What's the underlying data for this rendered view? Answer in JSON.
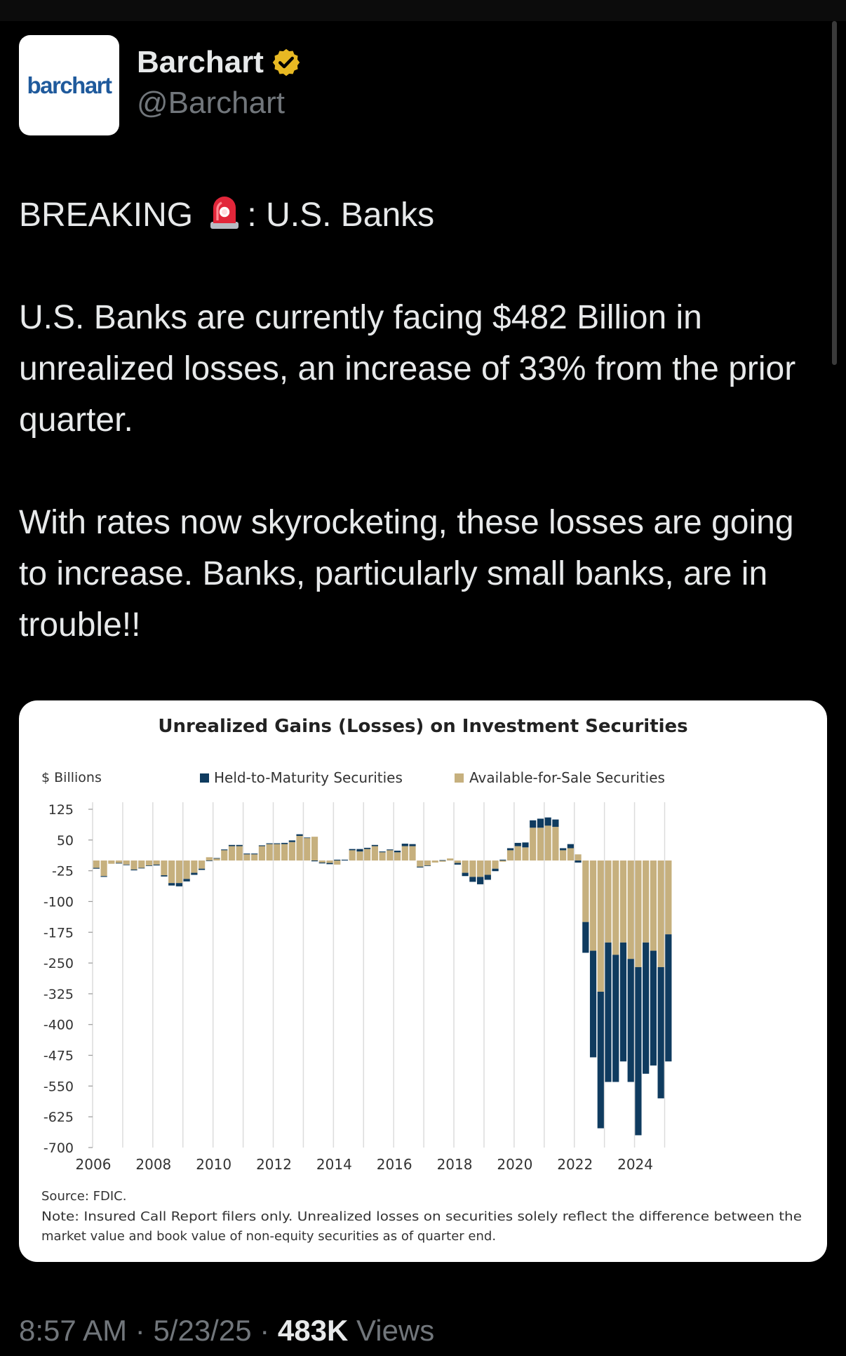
{
  "post": {
    "author": {
      "name": "Barchart",
      "handle": "@Barchart",
      "avatar_text": "barchart",
      "verified_icon": "verified-badge-icon",
      "avatar_color": "#1f5a9c",
      "badge_color": "#e8b923"
    },
    "text": {
      "line1_prefix": "BREAKING",
      "line1_icon": "siren-emoji-icon",
      "line1_suffix": ": U.S. Banks",
      "paragraph2": "U.S. Banks are currently facing $482 Billion in unrealized losses, an increase of 33% from the prior quarter.",
      "paragraph3": "With rates now skyrocketing, these losses are going to increase.  Banks, particularly small banks, are in trouble!!"
    },
    "footer": {
      "time": "8:57 AM",
      "sep1": " · ",
      "date": "5/23/25",
      "sep2": " · ",
      "views_count": "483K",
      "views_label": " Views"
    }
  },
  "chart_data": {
    "type": "bar",
    "stacked": true,
    "title": "Unrealized Gains (Losses) on Investment Securities",
    "ylabel": "$ Billions",
    "ylim": [
      -700,
      150
    ],
    "y_ticks": [
      125,
      50,
      -25,
      -100,
      -175,
      -250,
      -325,
      -400,
      -475,
      -550,
      -625,
      -700
    ],
    "x_tick_labels": [
      "2006",
      "2008",
      "2010",
      "2012",
      "2014",
      "2016",
      "2018",
      "2020",
      "2022",
      "2024"
    ],
    "legend_position": "top",
    "grid": "vertical",
    "source": "Source: FDIC.",
    "note": "Note: Insured Call Report filers only. Unrealized losses on securities solely reflect the difference between the market value and book value of non-equity securities as of quarter end.",
    "colors": {
      "htm": "#0f3b5f",
      "afs": "#c6b07e"
    },
    "start_quarter": "2006 Q1",
    "categories": [
      "2006 Q1",
      "2006 Q2",
      "2006 Q3",
      "2006 Q4",
      "2007 Q1",
      "2007 Q2",
      "2007 Q3",
      "2007 Q4",
      "2008 Q1",
      "2008 Q2",
      "2008 Q3",
      "2008 Q4",
      "2009 Q1",
      "2009 Q2",
      "2009 Q3",
      "2009 Q4",
      "2010 Q1",
      "2010 Q2",
      "2010 Q3",
      "2010 Q4",
      "2011 Q1",
      "2011 Q2",
      "2011 Q3",
      "2011 Q4",
      "2012 Q1",
      "2012 Q2",
      "2012 Q3",
      "2012 Q4",
      "2013 Q1",
      "2013 Q2",
      "2013 Q3",
      "2013 Q4",
      "2014 Q1",
      "2014 Q2",
      "2014 Q3",
      "2014 Q4",
      "2015 Q1",
      "2015 Q2",
      "2015 Q3",
      "2015 Q4",
      "2016 Q1",
      "2016 Q2",
      "2016 Q3",
      "2016 Q4",
      "2017 Q1",
      "2017 Q2",
      "2017 Q3",
      "2017 Q4",
      "2018 Q1",
      "2018 Q2",
      "2018 Q3",
      "2018 Q4",
      "2019 Q1",
      "2019 Q2",
      "2019 Q3",
      "2019 Q4",
      "2020 Q1",
      "2020 Q2",
      "2020 Q3",
      "2020 Q4",
      "2021 Q1",
      "2021 Q2",
      "2021 Q3",
      "2021 Q4",
      "2022 Q1",
      "2022 Q2",
      "2022 Q3",
      "2022 Q4",
      "2023 Q1",
      "2023 Q2",
      "2023 Q3",
      "2023 Q4",
      "2024 Q1",
      "2024 Q2",
      "2024 Q3",
      "2024 Q4",
      "2025 Q1"
    ],
    "series": [
      {
        "name": "Held-to-Maturity Securities",
        "values": [
          -2,
          -2,
          0,
          -1,
          -1,
          -2,
          -1,
          -1,
          -2,
          -3,
          -6,
          -8,
          -6,
          -5,
          -3,
          -1,
          1,
          2,
          3,
          3,
          2,
          2,
          2,
          2,
          2,
          3,
          4,
          4,
          1,
          -2,
          -2,
          -3,
          2,
          2,
          3,
          6,
          3,
          3,
          2,
          2,
          4,
          6,
          5,
          -2,
          -1,
          0,
          1,
          0,
          -4,
          -8,
          -12,
          -18,
          -12,
          -6,
          2,
          5,
          8,
          12,
          18,
          22,
          20,
          18,
          5,
          10,
          -5,
          -75,
          -260,
          -333,
          -340,
          -310,
          -290,
          -300,
          -410,
          -320,
          -280,
          -320,
          -310
        ]
      },
      {
        "name": "Available-for-Sale Securities",
        "values": [
          -18,
          -38,
          -8,
          -6,
          -10,
          -22,
          -18,
          -12,
          -10,
          -36,
          -55,
          -55,
          -45,
          -30,
          -20,
          8,
          5,
          25,
          35,
          35,
          15,
          15,
          35,
          40,
          40,
          40,
          45,
          60,
          55,
          58,
          -5,
          -6,
          -10,
          0,
          25,
          22,
          28,
          35,
          20,
          25,
          20,
          35,
          35,
          -15,
          -12,
          -5,
          -3,
          5,
          -6,
          -30,
          -40,
          -40,
          -35,
          -20,
          -3,
          25,
          35,
          32,
          80,
          80,
          85,
          82,
          25,
          30,
          15,
          -150,
          -220,
          -320,
          -200,
          -230,
          -200,
          -240,
          -260,
          -200,
          -220,
          -260,
          -180
        ]
      }
    ]
  }
}
